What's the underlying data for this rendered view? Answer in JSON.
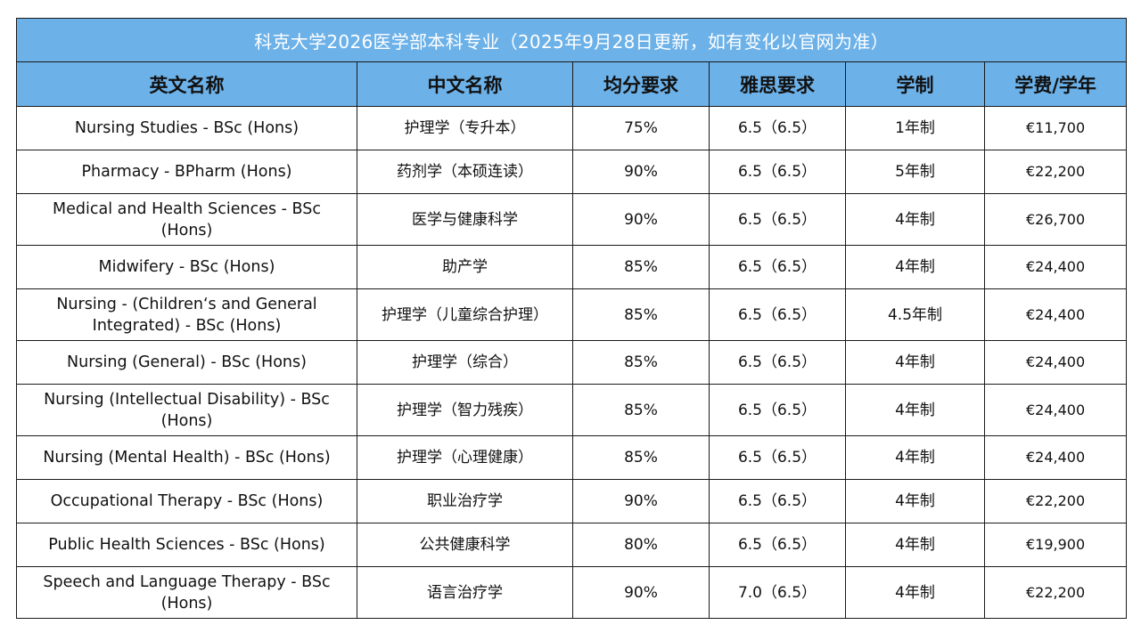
{
  "table": {
    "title": "科克大学2026医学部本科专业（2025年9月28日更新，如有变化以官网为准）",
    "columns": [
      "英文名称",
      "中文名称",
      "均分要求",
      "雅思要求",
      "学制",
      "学费/学年"
    ],
    "rows": [
      [
        "Nursing Studies - BSc (Hons)",
        "护理学（专升本）",
        "75%",
        "6.5（6.5）",
        "1年制",
        "€11,700"
      ],
      [
        "Pharmacy - BPharm (Hons)",
        "药剂学（本硕连读）",
        "90%",
        "6.5（6.5）",
        "5年制",
        "€22,200"
      ],
      [
        "Medical and Health Sciences - BSc (Hons)",
        "医学与健康科学",
        "90%",
        "6.5（6.5）",
        "4年制",
        "€26,700"
      ],
      [
        "Midwifery - BSc (Hons)",
        "助产学",
        "85%",
        "6.5（6.5）",
        "4年制",
        "€24,400"
      ],
      [
        "Nursing - (Children‘s and General Integrated) - BSc (Hons)",
        "护理学（儿童综合护理）",
        "85%",
        "6.5（6.5）",
        "4.5年制",
        "€24,400"
      ],
      [
        "Nursing (General) - BSc (Hons)",
        "护理学（综合）",
        "85%",
        "6.5（6.5）",
        "4年制",
        "€24,400"
      ],
      [
        "Nursing (Intellectual Disability) - BSc (Hons)",
        "护理学（智力残疾）",
        "85%",
        "6.5（6.5）",
        "4年制",
        "€24,400"
      ],
      [
        "Nursing (Mental Health) - BSc (Hons)",
        "护理学（心理健康）",
        "85%",
        "6.5（6.5）",
        "4年制",
        "€24,400"
      ],
      [
        "Occupational Therapy - BSc (Hons)",
        "职业治疗学",
        "90%",
        "6.5（6.5）",
        "4年制",
        "€22,200"
      ],
      [
        "Public Health Sciences - BSc (Hons)",
        "公共健康科学",
        "80%",
        "6.5（6.5）",
        "4年制",
        "€19,900"
      ],
      [
        "Speech and Language Therapy - BSc (Hons)",
        "语言治疗学",
        "90%",
        "7.0（6.5）",
        "4年制",
        "€22,200"
      ]
    ]
  },
  "colors": {
    "header_bg": "#6cb1e8",
    "title_text": "#ffffff",
    "border": "#1a1a1a"
  }
}
